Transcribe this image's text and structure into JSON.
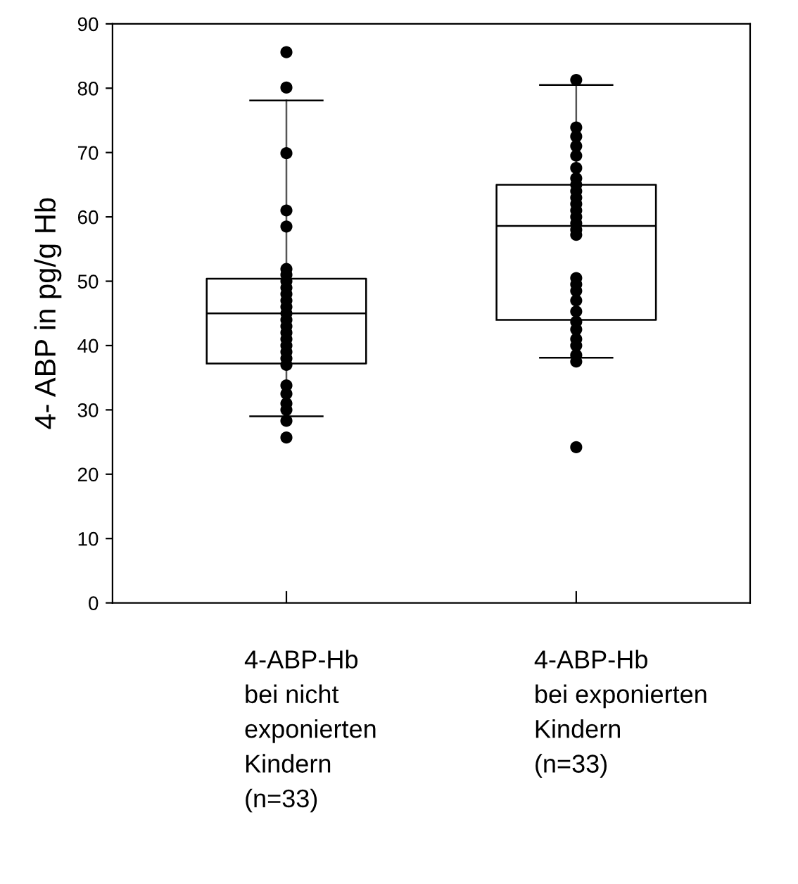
{
  "chart_data": {
    "type": "box",
    "ylabel": "4- ABP in pg/g Hb",
    "categories": [
      "4-ABP-Hb\nbei nicht\nexponierten\nKindern\n(n=33)",
      "4-ABP-Hb\nbei exponierten\nKindern\n(n=33)"
    ],
    "boxes": [
      {
        "low": 29.0,
        "q1": 37.2,
        "median": 45.0,
        "q3": 50.4,
        "high": 78.1
      },
      {
        "low": 38.1,
        "q1": 44.0,
        "median": 58.6,
        "q3": 65.0,
        "high": 80.5
      }
    ],
    "series": [
      {
        "type": "scatter",
        "color": "#000000",
        "x": [
          "4-ABP-Hb\nbei nicht\nexponierten\nKindern\n(n=33)",
          "4-ABP-Hb\nbei nicht\nexponierten\nKindern\n(n=33)",
          "4-ABP-Hb\nbei nicht\nexponierten\nKindern\n(n=33)",
          "4-ABP-Hb\nbei nicht\nexponierten\nKindern\n(n=33)",
          "4-ABP-Hb\nbei nicht\nexponierten\nKindern\n(n=33)",
          "4-ABP-Hb\nbei nicht\nexponierten\nKindern\n(n=33)",
          "4-ABP-Hb\nbei nicht\nexponierten\nKindern\n(n=33)",
          "4-ABP-Hb\nbei nicht\nexponierten\nKindern\n(n=33)",
          "4-ABP-Hb\nbei nicht\nexponierten\nKindern\n(n=33)",
          "4-ABP-Hb\nbei nicht\nexponierten\nKindern\n(n=33)",
          "4-ABP-Hb\nbei nicht\nexponierten\nKindern\n(n=33)",
          "4-ABP-Hb\nbei nicht\nexponierten\nKindern\n(n=33)",
          "4-ABP-Hb\nbei nicht\nexponierten\nKindern\n(n=33)",
          "4-ABP-Hb\nbei nicht\nexponierten\nKindern\n(n=33)",
          "4-ABP-Hb\nbei nicht\nexponierten\nKindern\n(n=33)",
          "4-ABP-Hb\nbei nicht\nexponierten\nKindern\n(n=33)",
          "4-ABP-Hb\nbei nicht\nexponierten\nKindern\n(n=33)",
          "4-ABP-Hb\nbei nicht\nexponierten\nKindern\n(n=33)",
          "4-ABP-Hb\nbei nicht\nexponierten\nKindern\n(n=33)",
          "4-ABP-Hb\nbei nicht\nexponierten\nKindern\n(n=33)",
          "4-ABP-Hb\nbei nicht\nexponierten\nKindern\n(n=33)",
          "4-ABP-Hb\nbei nicht\nexponierten\nKindern\n(n=33)",
          "4-ABP-Hb\nbei nicht\nexponierten\nKindern\n(n=33)",
          "4-ABP-Hb\nbei nicht\nexponierten\nKindern\n(n=33)",
          "4-ABP-Hb\nbei nicht\nexponierten\nKindern\n(n=33)",
          "4-ABP-Hb\nbei nicht\nexponierten\nKindern\n(n=33)",
          "4-ABP-Hb\nbei nicht\nexponierten\nKindern\n(n=33)",
          "4-ABP-Hb\nbei nicht\nexponierten\nKindern\n(n=33)"
        ],
        "values": [
          85.6,
          80.1,
          69.9,
          61.0,
          58.5,
          51.9,
          51,
          50,
          49,
          48,
          47,
          46,
          45,
          44,
          43,
          42,
          41,
          40,
          39,
          38,
          37,
          33.8,
          32.5,
          31,
          30,
          null,
          28.3,
          25.7
        ]
      },
      {
        "type": "scatter",
        "color": "#000000",
        "x": [
          "4-ABP-Hb\nbei exponierten\nKindern\n(n=33)",
          "4-ABP-Hb\nbei exponierten\nKindern\n(n=33)",
          "4-ABP-Hb\nbei exponierten\nKindern\n(n=33)",
          "4-ABP-Hb\nbei exponierten\nKindern\n(n=33)",
          "4-ABP-Hb\nbei exponierten\nKindern\n(n=33)",
          "4-ABP-Hb\nbei exponierten\nKindern\n(n=33)",
          "4-ABP-Hb\nbei exponierten\nKindern\n(n=33)",
          "4-ABP-Hb\nbei exponierten\nKindern\n(n=33)",
          "4-ABP-Hb\nbei exponierten\nKindern\n(n=33)",
          "4-ABP-Hb\nbei exponierten\nKindern\n(n=33)",
          "4-ABP-Hb\nbei exponierten\nKindern\n(n=33)",
          "4-ABP-Hb\nbei exponierten\nKindern\n(n=33)",
          "4-ABP-Hb\nbei exponierten\nKindern\n(n=33)",
          "4-ABP-Hb\nbei exponierten\nKindern\n(n=33)",
          "4-ABP-Hb\nbei exponierten\nKindern\n(n=33)",
          "4-ABP-Hb\nbei exponierten\nKindern\n(n=33)",
          "4-ABP-Hb\nbei exponierten\nKindern\n(n=33)",
          "4-ABP-Hb\nbei exponierten\nKindern\n(n=33)",
          "4-ABP-Hb\nbei exponierten\nKindern\n(n=33)",
          "4-ABP-Hb\nbei exponierten\nKindern\n(n=33)",
          "4-ABP-Hb\nbei exponierten\nKindern\n(n=33)",
          "4-ABP-Hb\nbei exponierten\nKindern\n(n=33)",
          "4-ABP-Hb\nbei exponierten\nKindern\n(n=33)",
          "4-ABP-Hb\nbei exponierten\nKindern\n(n=33)",
          "4-ABP-Hb\nbei exponierten\nKindern\n(n=33)",
          "4-ABP-Hb\nbei exponierten\nKindern\n(n=33)",
          "4-ABP-Hb\nbei exponierten\nKindern\n(n=33)",
          "4-ABP-Hb\nbei exponierten\nKindern\n(n=33)"
        ],
        "values": [
          81.3,
          73.9,
          72.5,
          71,
          69.5,
          67.6,
          66,
          65,
          64,
          63,
          62,
          61,
          60,
          59,
          58,
          57.2,
          50.5,
          49.5,
          48.5,
          47,
          45.3,
          43.7,
          42.5,
          41,
          40,
          38.5,
          37.5,
          24.2
        ]
      }
    ],
    "ylim": [
      0,
      90
    ],
    "yticks": [
      0,
      10,
      20,
      30,
      40,
      50,
      60,
      70,
      80,
      90
    ],
    "marker": "circle",
    "grid": false
  }
}
